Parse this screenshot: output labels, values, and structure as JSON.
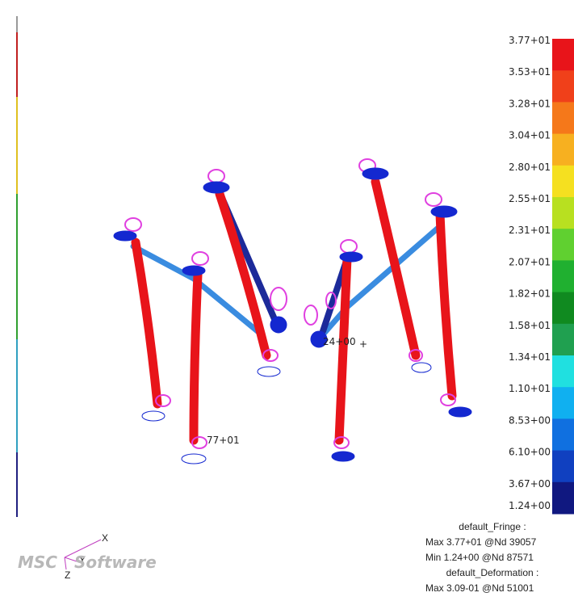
{
  "viewport": {
    "legend": {
      "labels": [
        "3.77+01",
        "3.53+01",
        "3.28+01",
        "3.04+01",
        "2.80+01",
        "2.55+01",
        "2.31+01",
        "2.07+01",
        "1.82+01",
        "1.58+01",
        "1.34+01",
        "1.10+01",
        "8.53+00",
        "6.10+00",
        "3.67+00",
        "1.24+00"
      ],
      "colors": [
        "#e8141a",
        "#f0401a",
        "#f5781a",
        "#f7b020",
        "#f5e020",
        "#b8e020",
        "#60d030",
        "#20b030",
        "#108a20",
        "#20a050",
        "#20e0e0",
        "#10b0f0",
        "#1070e0",
        "#1040c0",
        "#101880"
      ]
    },
    "annotations": [
      "24+00",
      "77+01"
    ],
    "info": [
      "default_Fringe :",
      "Max 3.77+01 @Nd 39057",
      "Min 1.24+00 @Nd 87571",
      "default_Deformation :",
      "Max 3.09-01 @Nd 51001"
    ],
    "triad": [
      "X",
      "Y",
      "Z"
    ],
    "logo": [
      "MSC",
      "Software"
    ]
  }
}
